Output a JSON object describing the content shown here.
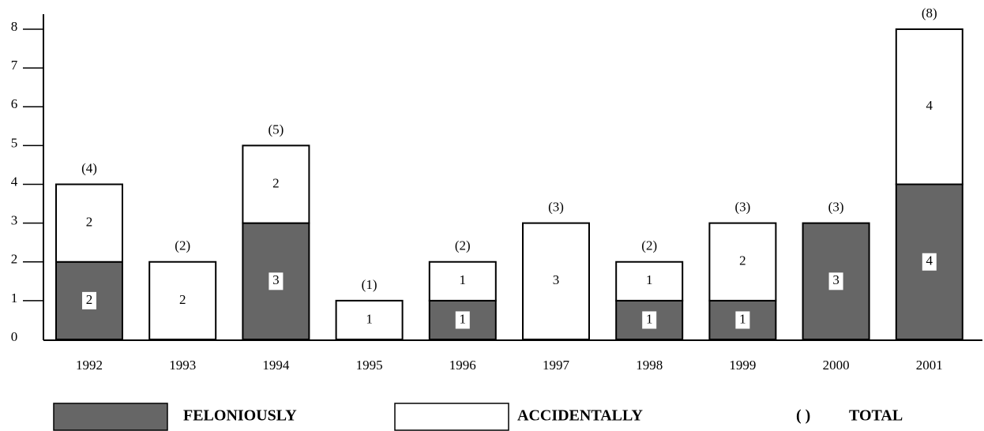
{
  "chart_data": {
    "type": "stacked-bar",
    "categories": [
      "1992",
      "1993",
      "1994",
      "1995",
      "1996",
      "1997",
      "1998",
      "1999",
      "2000",
      "2001"
    ],
    "series": [
      {
        "name": "FELONIOUSLY",
        "color": "#666666",
        "values": [
          2,
          0,
          3,
          0,
          1,
          0,
          1,
          1,
          3,
          4
        ]
      },
      {
        "name": "ACCIDENTALLY",
        "color": "#ffffff",
        "values": [
          2,
          2,
          2,
          1,
          1,
          3,
          1,
          2,
          0,
          4
        ]
      }
    ],
    "totals": {
      "name": "TOTAL",
      "symbol": "( )",
      "values": [
        4,
        2,
        5,
        1,
        2,
        3,
        2,
        3,
        3,
        8
      ],
      "value_labels": [
        "(4)",
        "(2)",
        "(5)",
        "(1)",
        "(2)",
        "(3)",
        "(2)",
        "(3)",
        "(3)",
        "(8)"
      ]
    },
    "ylim": [
      0,
      8
    ],
    "yticks": [
      0,
      1,
      2,
      3,
      4,
      5,
      6,
      7,
      8
    ]
  }
}
